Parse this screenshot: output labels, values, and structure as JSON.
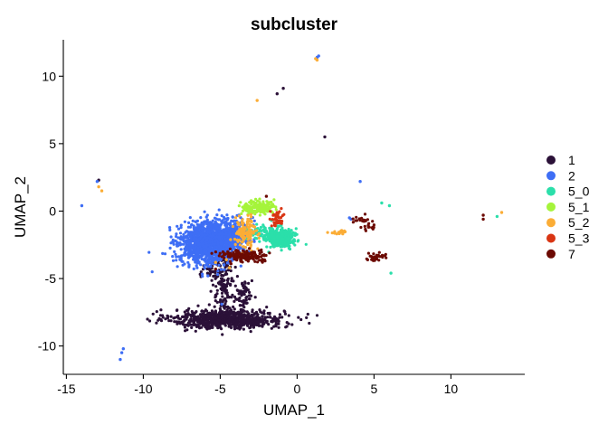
{
  "chart_data": {
    "type": "scatter",
    "title": "subcluster",
    "xlabel": "UMAP_1",
    "ylabel": "UMAP_2",
    "xlim": [
      -15.2,
      14.8
    ],
    "ylim": [
      -12.1,
      12.7
    ],
    "xticks": [
      -15,
      -10,
      -5,
      0,
      5,
      10
    ],
    "yticks": [
      -10,
      -5,
      0,
      5,
      10
    ],
    "grid": false,
    "legend_position": "right",
    "series": [
      {
        "name": "1",
        "color": "#2b1138",
        "clusters": [
          {
            "cx": -4.5,
            "cy": -8.0,
            "sx": 1.8,
            "sy": 0.35,
            "n": 750
          },
          {
            "cx": -4.8,
            "cy": -5.3,
            "sx": 0.35,
            "sy": 1.1,
            "n": 130
          },
          {
            "cx": -3.5,
            "cy": -6.3,
            "sx": 0.3,
            "sy": 0.6,
            "n": 70
          },
          {
            "cx": -5.6,
            "cy": -4.4,
            "sx": 0.35,
            "sy": 0.4,
            "n": 40
          }
        ],
        "points": [
          [
            -12.9,
            2.3
          ],
          [
            -1.3,
            8.7
          ],
          [
            -0.9,
            9.1
          ],
          [
            1.8,
            5.5
          ]
        ]
      },
      {
        "name": "2",
        "color": "#3e6ef5",
        "clusters": [
          {
            "cx": -5.7,
            "cy": -2.4,
            "sx": 0.95,
            "sy": 0.75,
            "n": 1400
          },
          {
            "cx": -4.2,
            "cy": -1.5,
            "sx": 0.6,
            "sy": 0.5,
            "n": 250
          }
        ],
        "points": [
          [
            1.4,
            11.5
          ],
          [
            1.3,
            11.4
          ],
          [
            -14.0,
            0.4
          ],
          [
            -13.0,
            2.2
          ],
          [
            4.1,
            2.2
          ],
          [
            3.4,
            -0.5
          ],
          [
            3.5,
            -0.6
          ],
          [
            -11.3,
            -10.2
          ],
          [
            -11.4,
            -10.5
          ],
          [
            -11.5,
            -11.0
          ],
          [
            -5.8,
            -4.8
          ],
          [
            -4.9,
            -6.9
          ]
        ]
      },
      {
        "name": "5_0",
        "color": "#2bdfaa",
        "clusters": [
          {
            "cx": -1.1,
            "cy": -2.0,
            "sx": 0.45,
            "sy": 0.35,
            "n": 320
          },
          {
            "cx": -2.3,
            "cy": -1.6,
            "sx": 0.5,
            "sy": 0.3,
            "n": 60
          }
        ],
        "points": [
          [
            5.5,
            0.6
          ],
          [
            6.0,
            0.4
          ],
          [
            6.1,
            -4.6
          ],
          [
            13.0,
            -0.4
          ]
        ]
      },
      {
        "name": "5_1",
        "color": "#a5f43b",
        "clusters": [
          {
            "cx": -2.6,
            "cy": 0.3,
            "sx": 0.55,
            "sy": 0.25,
            "n": 160
          }
        ],
        "points": []
      },
      {
        "name": "5_2",
        "color": "#fbad36",
        "clusters": [
          {
            "cx": -3.3,
            "cy": -1.6,
            "sx": 0.35,
            "sy": 0.55,
            "n": 130
          },
          {
            "cx": 2.7,
            "cy": -1.6,
            "sx": 0.3,
            "sy": 0.08,
            "n": 20
          }
        ],
        "points": [
          [
            1.2,
            11.3
          ],
          [
            1.3,
            11.2
          ],
          [
            -2.6,
            8.2
          ],
          [
            -12.9,
            1.8
          ],
          [
            -12.7,
            1.5
          ],
          [
            13.3,
            -0.1
          ],
          [
            -4.6,
            -3.6
          ],
          [
            -4.4,
            -4.2
          ],
          [
            -5.3,
            -3.8
          ]
        ]
      },
      {
        "name": "5_3",
        "color": "#d93513",
        "clusters": [
          {
            "cx": -1.3,
            "cy": -0.6,
            "sx": 0.25,
            "sy": 0.3,
            "n": 45
          }
        ],
        "points": []
      },
      {
        "name": "7",
        "color": "#6c0a03",
        "clusters": [
          {
            "cx": -3.3,
            "cy": -3.3,
            "sx": 0.8,
            "sy": 0.2,
            "n": 150
          },
          {
            "cx": 5.1,
            "cy": -3.4,
            "sx": 0.3,
            "sy": 0.15,
            "n": 30
          },
          {
            "cx": 4.5,
            "cy": -1.0,
            "sx": 0.3,
            "sy": 0.3,
            "n": 20
          },
          {
            "cx": 3.9,
            "cy": -0.6,
            "sx": 0.2,
            "sy": 0.15,
            "n": 10
          }
        ],
        "points": [
          [
            12.1,
            -0.3
          ],
          [
            12.1,
            -0.6
          ],
          [
            -2.0,
            1.1
          ],
          [
            -4.3,
            -3.9
          ],
          [
            -5.3,
            -4.3
          ]
        ]
      }
    ]
  }
}
